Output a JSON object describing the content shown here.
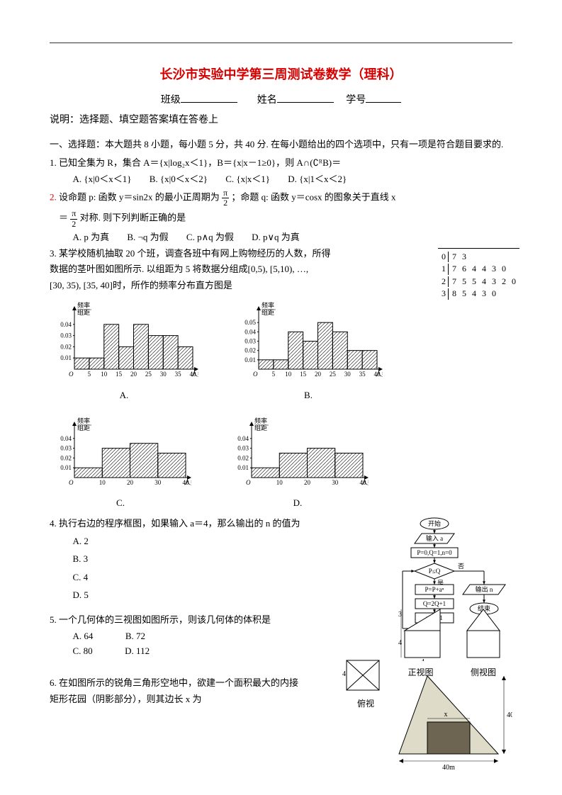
{
  "title": "长沙市实验中学第三周测试卷数学（理科）",
  "header": {
    "class_label": "班级",
    "name_label": "姓名",
    "id_label": "学号"
  },
  "note": "说明：选择题、填空题答案填在答卷上",
  "section1_header": "一、选择题：本大题共 8 小题，每小题 5 分，共 40 分. 在每小题给出的四个选项中，只有一项是符合题目要求的.",
  "q1": {
    "stem": "1. 已知全集为 R，集合 A＝{x|log₂x＜1}，B＝{x|x－1≥0}，则 A∩(∁ᴿB)＝",
    "A": "A. {x|0＜x＜1}",
    "B": "B. {x|0＜x＜2}",
    "C": "C. {x|x＜1}",
    "D": "D. {x|1＜x＜2}"
  },
  "q2": {
    "num": "2.",
    "stem_a": " 设命题 p: 函数 y＝sin2x 的最小正周期为",
    "stem_b": "；命题 q: 函数 y＝cosx 的图象关于直线 x",
    "stem_c": "＝",
    "stem_d": "对称. 则下列判断正确的是",
    "frac_n": "π",
    "frac_d": "2",
    "A": "A. p 为真",
    "B": "B. ¬q 为假",
    "C": "C. p∧q 为假",
    "D": "D. p∨q 为真"
  },
  "q3": {
    "line1": "3. 某学校随机抽取 20 个班，调查各班中有网上购物经历的人数，所得",
    "line2": "数据的茎叶图如图所示. 以组距为 5 将数据分组成[0,5), [5,10), …,",
    "line3": "[30, 35), [35, 40]时，所作的频率分布直方图是",
    "stemleaf": {
      "rows": [
        [
          "0",
          "7",
          "3",
          "",
          "",
          "",
          "",
          ""
        ],
        [
          "1",
          "7",
          "6",
          "4",
          "4",
          "3",
          "0",
          ""
        ],
        [
          "2",
          "7",
          "5",
          "5",
          "4",
          "3",
          "2",
          "0"
        ],
        [
          "3",
          "8",
          "5",
          "4",
          "3",
          "0",
          "",
          ""
        ]
      ]
    },
    "hist_axis_y": "频率\n组距",
    "hist_axis_x": "人数",
    "chartA": {
      "bins_x": [
        5,
        10,
        15,
        20,
        25,
        30,
        35,
        40
      ],
      "ylim": 0.05,
      "yticks": [
        0.01,
        0.02,
        0.03,
        0.04
      ],
      "heights": [
        0.01,
        0.01,
        0.04,
        0.02,
        0.04,
        0.03,
        0.03,
        0.02
      ],
      "bar_fill": "none",
      "bar_stroke": "#000",
      "hatch": true,
      "label": "A."
    },
    "chartB": {
      "bins_x": [
        5,
        10,
        15,
        20,
        25,
        30,
        35,
        40
      ],
      "ylim": 0.06,
      "yticks": [
        0.01,
        0.02,
        0.03,
        0.04,
        0.05
      ],
      "heights": [
        0.01,
        0.01,
        0.04,
        0.03,
        0.05,
        0.04,
        0.02,
        0.02
      ],
      "bar_fill": "none",
      "bar_stroke": "#000",
      "hatch": true,
      "label": "B."
    },
    "chartC": {
      "bins_x": [
        10,
        20,
        30,
        40
      ],
      "ylim": 0.05,
      "yticks": [
        0.01,
        0.02,
        0.03,
        0.04
      ],
      "heights": [
        0.01,
        0.03,
        0.035,
        0.025
      ],
      "bar_fill": "none",
      "bar_stroke": "#000",
      "hatch": true,
      "label": "C."
    },
    "chartD": {
      "bins_x": [
        10,
        20,
        30,
        40
      ],
      "ylim": 0.05,
      "yticks": [
        0.01,
        0.02,
        0.03,
        0.04
      ],
      "heights": [
        0.01,
        0.025,
        0.03,
        0.025
      ],
      "bar_fill": "none",
      "bar_stroke": "#000",
      "hatch": true,
      "label": "D."
    }
  },
  "q4": {
    "stem": "4. 执行右边的程序框图，如果输入 a＝4，那么输出的 n 的值为",
    "A": "A. 2",
    "B": "B. 3",
    "C": "C. 4",
    "D": "D. 5",
    "flow": {
      "start": "开始",
      "in": "输入 a",
      "init": "P=0,Q=1,n=0",
      "cond": "P≤Q",
      "yes": "是",
      "no": "否",
      "s1": "P=P+aⁿ",
      "s2": "Q=2Q+1",
      "s3": "n=n+1",
      "out": "输出 n",
      "end": "结束"
    }
  },
  "q5": {
    "stem": "5. 一个几何体的三视图如图所示，则该几何体的体积是",
    "A": "A. 64",
    "B": "B. 72",
    "C": "C. 80",
    "D": "D. 112",
    "front_label": "正视图",
    "side_label": "侧视图",
    "top_label": "俯视",
    "dim4": "4",
    "dim3": "3"
  },
  "q6": {
    "line1": "6. 在如图所示的锐角三角形空地中，欲建一个面积最大的内接",
    "line2": "矩形花园（阴影部分），则其边长 x 为",
    "dim_h": "40m",
    "dim_w": "40m",
    "dim_x": "x"
  }
}
